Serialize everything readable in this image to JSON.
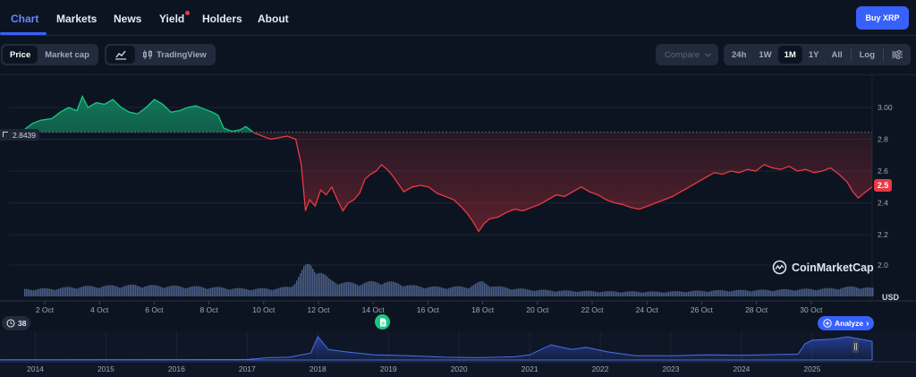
{
  "tabs": [
    {
      "label": "Chart",
      "active": true
    },
    {
      "label": "Markets",
      "active": false
    },
    {
      "label": "News",
      "active": false
    },
    {
      "label": "Yield",
      "active": false
    },
    {
      "label": "Holders",
      "active": false
    },
    {
      "label": "About",
      "active": false
    }
  ],
  "buy_button": "Buy XRP",
  "metric_toggle": {
    "price": "Price",
    "market_cap": "Market cap"
  },
  "chart_style": {
    "tradingview": "TradingView"
  },
  "compare": "Compare",
  "ranges": [
    {
      "label": "24h",
      "active": false
    },
    {
      "label": "1W",
      "active": false
    },
    {
      "label": "1M",
      "active": true
    },
    {
      "label": "1Y",
      "active": false
    },
    {
      "label": "All",
      "active": false
    }
  ],
  "log": "Log",
  "currency": "USD",
  "watermark": "CoinMarketCap",
  "events_count": "38",
  "analyze": "Analyze",
  "colors": {
    "up": "#16c784",
    "down": "#ea3943",
    "accent": "#3861fb",
    "volume": "#5e77a8"
  },
  "chart_data": {
    "type": "area",
    "baseline": 2.8439,
    "baseline_label": "2.8439",
    "current_price": 2.5,
    "current_label": "2.5",
    "ylim": [
      1.9,
      3.1
    ],
    "y_ticks": [
      2.2,
      2.4,
      2.6,
      2.8,
      3.0
    ],
    "y_tick_labels": [
      "2.2",
      "2.4",
      "2.6",
      "2.8",
      "3.00"
    ],
    "y_ticks_volume": [
      2.0
    ],
    "y_tick_labels_volume": [
      "2.0"
    ],
    "x_range": [
      1,
      31.6
    ],
    "x_ticks": [
      2,
      4,
      6,
      8,
      10,
      12,
      14,
      16,
      18,
      20,
      22,
      24,
      26,
      28,
      30
    ],
    "x_tick_labels": [
      "2 Oct",
      "4 Oct",
      "6 Oct",
      "8 Oct",
      "10 Oct",
      "12 Oct",
      "14 Oct",
      "16 Oct",
      "18 Oct",
      "20 Oct",
      "22 Oct",
      "24 Oct",
      "26 Oct",
      "28 Oct",
      "30 Oct"
    ],
    "price": [
      [
        1.0,
        2.86
      ],
      [
        1.3,
        2.9
      ],
      [
        1.6,
        2.92
      ],
      [
        2.0,
        2.93
      ],
      [
        2.3,
        2.97
      ],
      [
        2.6,
        3.0
      ],
      [
        2.9,
        2.98
      ],
      [
        3.1,
        3.07
      ],
      [
        3.3,
        3.0
      ],
      [
        3.6,
        3.03
      ],
      [
        3.9,
        3.02
      ],
      [
        4.2,
        3.05
      ],
      [
        4.5,
        3.0
      ],
      [
        4.8,
        2.97
      ],
      [
        5.1,
        2.96
      ],
      [
        5.4,
        3.0
      ],
      [
        5.7,
        3.05
      ],
      [
        6.0,
        3.02
      ],
      [
        6.3,
        2.97
      ],
      [
        6.6,
        2.98
      ],
      [
        6.9,
        3.0
      ],
      [
        7.2,
        3.01
      ],
      [
        7.5,
        2.99
      ],
      [
        7.8,
        2.97
      ],
      [
        8.0,
        2.95
      ],
      [
        8.2,
        2.87
      ],
      [
        8.5,
        2.85
      ],
      [
        8.8,
        2.86
      ],
      [
        9.0,
        2.88
      ],
      [
        9.3,
        2.84
      ],
      [
        9.6,
        2.82
      ],
      [
        9.9,
        2.8
      ],
      [
        10.2,
        2.81
      ],
      [
        10.5,
        2.82
      ],
      [
        10.8,
        2.8
      ],
      [
        11.0,
        2.64
      ],
      [
        11.15,
        2.35
      ],
      [
        11.3,
        2.42
      ],
      [
        11.5,
        2.38
      ],
      [
        11.7,
        2.48
      ],
      [
        11.9,
        2.45
      ],
      [
        12.1,
        2.5
      ],
      [
        12.3,
        2.42
      ],
      [
        12.5,
        2.35
      ],
      [
        12.7,
        2.4
      ],
      [
        12.9,
        2.42
      ],
      [
        13.1,
        2.46
      ],
      [
        13.3,
        2.55
      ],
      [
        13.5,
        2.58
      ],
      [
        13.7,
        2.6
      ],
      [
        13.9,
        2.64
      ],
      [
        14.1,
        2.61
      ],
      [
        14.3,
        2.57
      ],
      [
        14.5,
        2.52
      ],
      [
        14.7,
        2.47
      ],
      [
        15.0,
        2.5
      ],
      [
        15.3,
        2.51
      ],
      [
        15.6,
        2.5
      ],
      [
        15.9,
        2.46
      ],
      [
        16.2,
        2.44
      ],
      [
        16.5,
        2.42
      ],
      [
        16.8,
        2.37
      ],
      [
        17.0,
        2.33
      ],
      [
        17.2,
        2.28
      ],
      [
        17.4,
        2.22
      ],
      [
        17.6,
        2.27
      ],
      [
        17.8,
        2.3
      ],
      [
        18.1,
        2.31
      ],
      [
        18.4,
        2.34
      ],
      [
        18.7,
        2.36
      ],
      [
        19.0,
        2.35
      ],
      [
        19.3,
        2.37
      ],
      [
        19.6,
        2.39
      ],
      [
        19.9,
        2.42
      ],
      [
        20.2,
        2.45
      ],
      [
        20.5,
        2.44
      ],
      [
        20.8,
        2.47
      ],
      [
        21.1,
        2.5
      ],
      [
        21.4,
        2.47
      ],
      [
        21.7,
        2.45
      ],
      [
        22.0,
        2.42
      ],
      [
        22.3,
        2.4
      ],
      [
        22.6,
        2.39
      ],
      [
        22.9,
        2.37
      ],
      [
        23.2,
        2.36
      ],
      [
        23.5,
        2.38
      ],
      [
        23.8,
        2.4
      ],
      [
        24.1,
        2.42
      ],
      [
        24.4,
        2.44
      ],
      [
        24.7,
        2.47
      ],
      [
        25.0,
        2.5
      ],
      [
        25.3,
        2.53
      ],
      [
        25.6,
        2.56
      ],
      [
        25.9,
        2.59
      ],
      [
        26.2,
        2.58
      ],
      [
        26.5,
        2.6
      ],
      [
        26.8,
        2.59
      ],
      [
        27.1,
        2.61
      ],
      [
        27.4,
        2.6
      ],
      [
        27.7,
        2.64
      ],
      [
        28.0,
        2.62
      ],
      [
        28.3,
        2.61
      ],
      [
        28.6,
        2.63
      ],
      [
        28.9,
        2.6
      ],
      [
        29.2,
        2.61
      ],
      [
        29.5,
        2.59
      ],
      [
        29.8,
        2.6
      ],
      [
        30.1,
        2.62
      ],
      [
        30.4,
        2.58
      ],
      [
        30.7,
        2.53
      ],
      [
        30.9,
        2.47
      ],
      [
        31.1,
        2.43
      ],
      [
        31.3,
        2.46
      ],
      [
        31.6,
        2.5
      ]
    ],
    "volume_relative": [
      [
        1.0,
        0.22
      ],
      [
        2.0,
        0.24
      ],
      [
        3.0,
        0.3
      ],
      [
        4.0,
        0.32
      ],
      [
        5.0,
        0.34
      ],
      [
        6.0,
        0.32
      ],
      [
        7.0,
        0.3
      ],
      [
        8.0,
        0.27
      ],
      [
        9.0,
        0.23
      ],
      [
        10.0,
        0.24
      ],
      [
        10.6,
        0.3
      ],
      [
        10.9,
        0.65
      ],
      [
        11.1,
        0.9
      ],
      [
        11.3,
        0.98
      ],
      [
        11.6,
        0.8
      ],
      [
        12.0,
        0.5
      ],
      [
        12.5,
        0.42
      ],
      [
        13.0,
        0.4
      ],
      [
        13.5,
        0.44
      ],
      [
        14.0,
        0.45
      ],
      [
        14.5,
        0.4
      ],
      [
        15.0,
        0.32
      ],
      [
        16.0,
        0.28
      ],
      [
        17.0,
        0.3
      ],
      [
        17.5,
        0.45
      ],
      [
        18.0,
        0.3
      ],
      [
        19.0,
        0.22
      ],
      [
        20.0,
        0.18
      ],
      [
        22.0,
        0.15
      ],
      [
        24.0,
        0.14
      ],
      [
        26.0,
        0.18
      ],
      [
        28.0,
        0.2
      ],
      [
        30.0,
        0.24
      ],
      [
        31.0,
        0.3
      ],
      [
        31.6,
        0.25
      ]
    ],
    "navigator": {
      "x_range": [
        2013.5,
        2025.85
      ],
      "x_ticks": [
        2014,
        2015,
        2016,
        2017,
        2018,
        2019,
        2020,
        2021,
        2022,
        2023,
        2024,
        2025
      ],
      "x_tick_labels": [
        "2014",
        "2015",
        "2016",
        "2017",
        "2018",
        "2019",
        "2020",
        "2021",
        "2022",
        "2023",
        "2024",
        "2025"
      ],
      "relative": [
        [
          2013.5,
          0.01
        ],
        [
          2017.0,
          0.02
        ],
        [
          2017.3,
          0.1
        ],
        [
          2017.6,
          0.12
        ],
        [
          2017.9,
          0.3
        ],
        [
          2018.0,
          1.0
        ],
        [
          2018.15,
          0.45
        ],
        [
          2018.4,
          0.35
        ],
        [
          2018.8,
          0.22
        ],
        [
          2019.3,
          0.18
        ],
        [
          2019.8,
          0.12
        ],
        [
          2020.3,
          0.1
        ],
        [
          2020.8,
          0.14
        ],
        [
          2021.0,
          0.22
        ],
        [
          2021.3,
          0.65
        ],
        [
          2021.6,
          0.45
        ],
        [
          2021.8,
          0.55
        ],
        [
          2022.1,
          0.35
        ],
        [
          2022.5,
          0.18
        ],
        [
          2023.0,
          0.18
        ],
        [
          2023.5,
          0.22
        ],
        [
          2024.0,
          0.2
        ],
        [
          2024.8,
          0.25
        ],
        [
          2024.9,
          0.7
        ],
        [
          2025.0,
          0.85
        ],
        [
          2025.3,
          0.9
        ],
        [
          2025.5,
          1.0
        ],
        [
          2025.85,
          0.8
        ]
      ]
    }
  }
}
